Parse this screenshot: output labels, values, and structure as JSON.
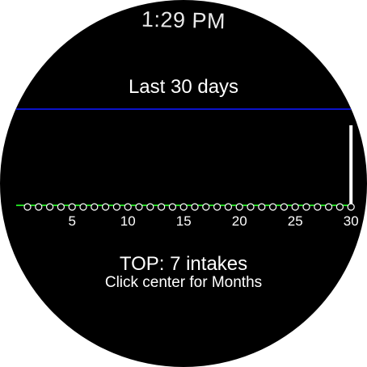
{
  "status_bar": {
    "time": "1:29 PM"
  },
  "header": {
    "period_title": "Last 30 days"
  },
  "summary": {
    "top_text": "TOP: 7 intakes",
    "hint_text": "Click center for Months"
  },
  "colors": {
    "max_line": "#0b12c9",
    "baseline": "#1fd61f",
    "marker": "#ffffff",
    "bar": "#ffffff",
    "background": "#000000"
  },
  "chart_data": {
    "type": "bar",
    "x": [
      1,
      2,
      3,
      4,
      5,
      6,
      7,
      8,
      9,
      10,
      11,
      12,
      13,
      14,
      15,
      16,
      17,
      18,
      19,
      20,
      21,
      22,
      23,
      24,
      25,
      26,
      27,
      28,
      29,
      30
    ],
    "values": [
      0,
      0,
      0,
      0,
      0,
      0,
      0,
      0,
      0,
      0,
      0,
      0,
      0,
      0,
      0,
      0,
      0,
      0,
      0,
      0,
      0,
      0,
      0,
      0,
      0,
      0,
      0,
      0,
      0,
      7
    ],
    "xticks": [
      5,
      10,
      15,
      20,
      25,
      30
    ],
    "ylim": [
      0,
      7
    ],
    "grid": false
  }
}
